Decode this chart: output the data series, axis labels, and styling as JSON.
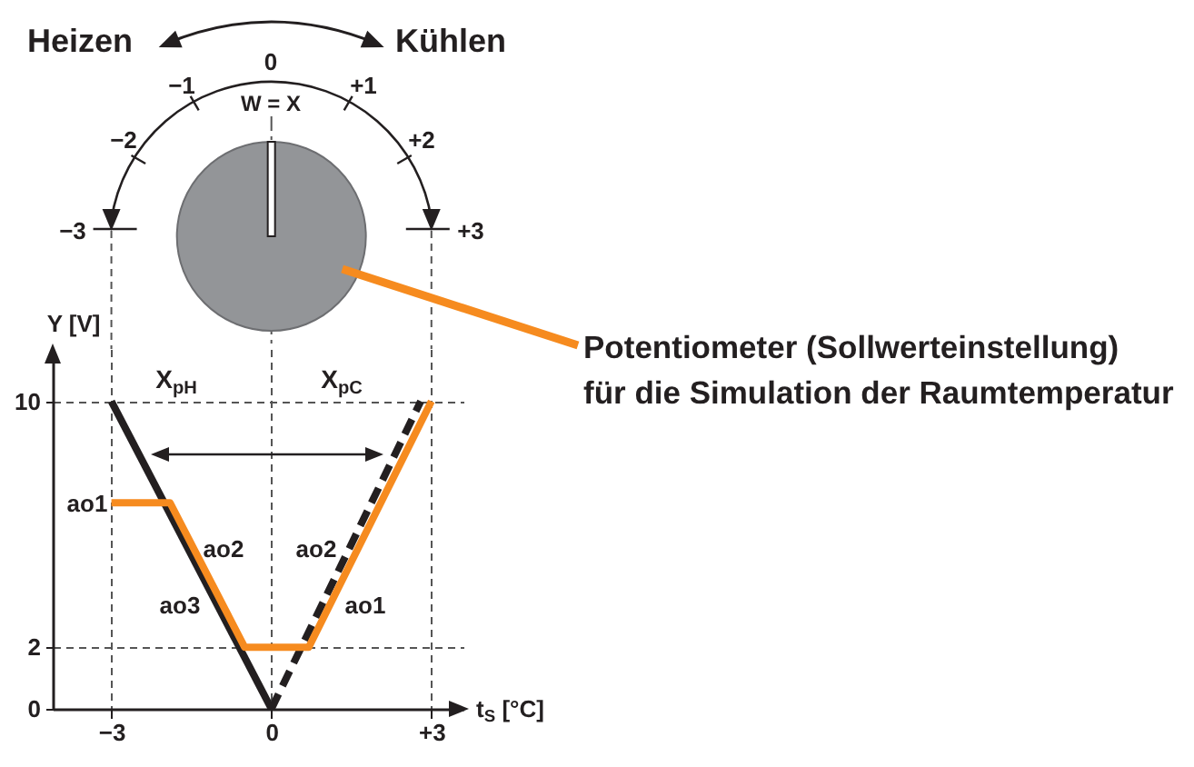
{
  "chart_data": {
    "type": "line",
    "xlabel": "t$_{S}$ [°C]",
    "ylabel": "Y [V]",
    "xlim": [
      -4.1,
      3.6
    ],
    "ylim": [
      0,
      11.7
    ],
    "xticks": [
      {
        "value": -3,
        "label": "−3"
      },
      0,
      {
        "value": 3,
        "label": "+3"
      }
    ],
    "yticks": [
      0,
      2,
      10
    ],
    "grid": true,
    "series": [
      {
        "color": "#231f20",
        "x": [
          -3,
          0
        ],
        "values": [
          10,
          0
        ]
      },
      {
        "color": "#231f20",
        "x": [
          0,
          2.8
        ],
        "values": [
          0,
          10
        ],
        "line_style": "dashed"
      },
      {
        "color": "#f68b1f",
        "x": [
          -3,
          -1.9,
          -0.5,
          0.7,
          3
        ],
        "values": [
          6.7,
          6.7,
          2,
          2,
          10
        ]
      }
    ],
    "annotations": [
      "Heizen",
      "Kühlen",
      "−3",
      "−2",
      "−1",
      "0",
      "+1",
      "+2",
      "+3",
      "W = X",
      "Potentiometer (Sollwerteinstellung)\nfür die Simulation der Raumtemperatur",
      "X$_{pH}$",
      "X$_{pC}$",
      "ao1",
      "ao2",
      "ao3",
      "ao2",
      "ao1"
    ]
  }
}
